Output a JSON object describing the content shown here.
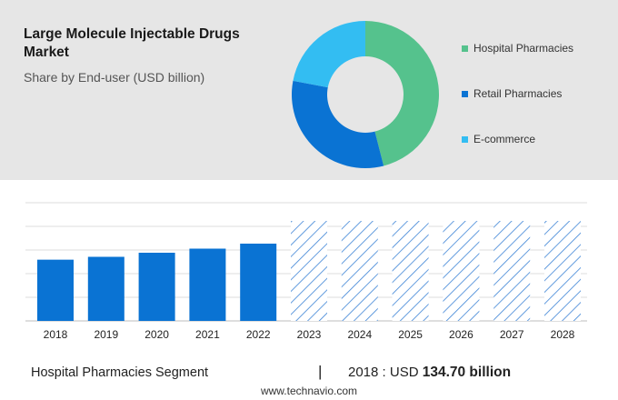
{
  "header": {
    "title": "Large Molecule Injectable Drugs Market",
    "subtitle": "Share by End-user (USD billion)"
  },
  "chart_data": [
    {
      "type": "pie",
      "variant": "donut",
      "labels": [
        "Hospital Pharmacies",
        "Retail Pharmacies",
        "E-commerce"
      ],
      "values": [
        46,
        32,
        22
      ],
      "colors": [
        "#55c28d",
        "#0a73d3",
        "#33bdf2"
      ],
      "legend": "right"
    },
    {
      "type": "bar",
      "categories": [
        "2018",
        "2019",
        "2020",
        "2021",
        "2022",
        "2023",
        "2024",
        "2025",
        "2026",
        "2027",
        "2028"
      ],
      "values": [
        134.7,
        141,
        150,
        159,
        170,
        null,
        null,
        null,
        null,
        null,
        null
      ],
      "forecast_categories": [
        "2023",
        "2024",
        "2025",
        "2026",
        "2027",
        "2028"
      ],
      "bar_color": "#0a73d3",
      "forecast_color": "#3d84d6",
      "grid": true,
      "ylim": [
        0,
        220
      ]
    }
  ],
  "footer": {
    "segment": "Hospital Pharmacies Segment",
    "separator": "|",
    "year_label": "2018 : USD",
    "value": "134.70 billion",
    "website": "www.technavio.com"
  }
}
